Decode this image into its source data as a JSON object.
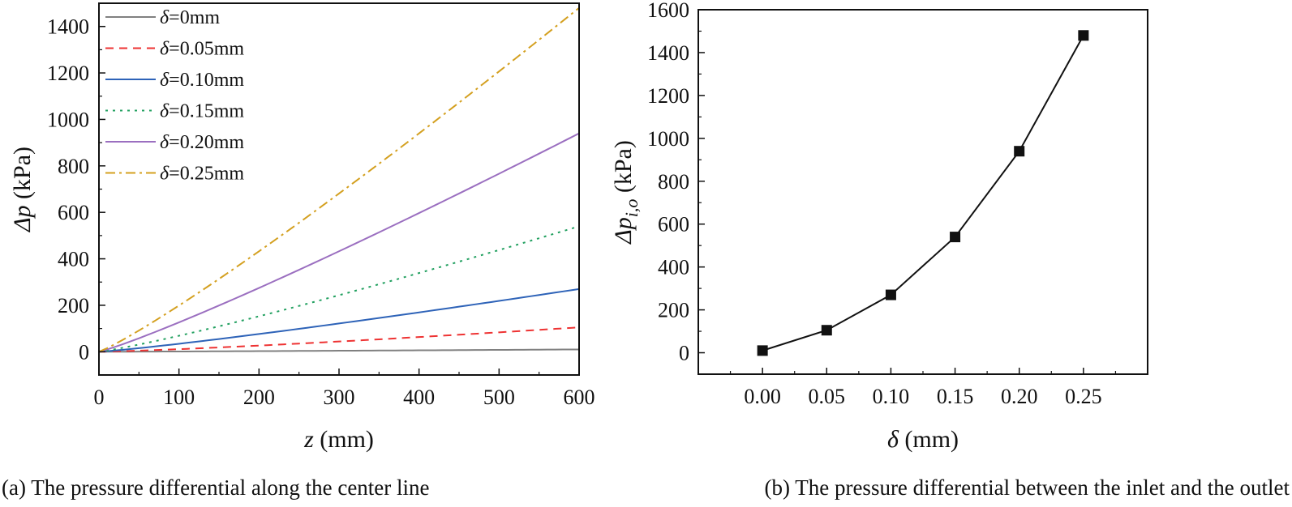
{
  "chart_data": [
    {
      "id": "a",
      "type": "line",
      "title": "",
      "caption": "(a) The pressure differential along the center line",
      "xlabel_symbol": "z",
      "xlabel_unit": "(mm)",
      "ylabel_symbol": "Δp",
      "ylabel_unit": "(kPa)",
      "xlim": [
        0,
        600
      ],
      "ylim": [
        -100,
        1500
      ],
      "xticks": [
        0,
        100,
        200,
        300,
        400,
        500,
        600
      ],
      "yticks": [
        0,
        200,
        400,
        600,
        800,
        1000,
        1200,
        1400
      ],
      "legend_position": "top-left",
      "series": [
        {
          "name": "δ=0mm",
          "legend_symbol": "δ",
          "legend_value": "=0mm",
          "color": "#808080",
          "dash": "solid",
          "end_value": 10,
          "exponent": 1.2
        },
        {
          "name": "δ=0.05mm",
          "legend_symbol": "δ",
          "legend_value": "=0.05mm",
          "color": "#ee3333",
          "dash": "dashed",
          "end_value": 105,
          "exponent": 1.25
        },
        {
          "name": "δ=0.10mm",
          "legend_symbol": "δ",
          "legend_value": "=0.10mm",
          "color": "#2e63b8",
          "dash": "solid",
          "end_value": 270,
          "exponent": 1.15
        },
        {
          "name": "δ=0.15mm",
          "legend_symbol": "δ",
          "legend_value": "=0.15mm",
          "color": "#22a060",
          "dash": "dotted",
          "end_value": 540,
          "exponent": 1.15
        },
        {
          "name": "δ=0.20mm",
          "legend_symbol": "δ",
          "legend_value": "=0.20mm",
          "color": "#9b6fc0",
          "dash": "solid",
          "end_value": 940,
          "exponent": 1.12
        },
        {
          "name": "δ=0.25mm",
          "legend_symbol": "δ",
          "legend_value": "=0.25mm",
          "color": "#d4a020",
          "dash": "dashdot",
          "end_value": 1480,
          "exponent": 1.12
        }
      ]
    },
    {
      "id": "b",
      "type": "line",
      "title": "",
      "caption": "(b) The pressure differential between the inlet and the outlet",
      "xlabel_symbol": "δ",
      "xlabel_unit": "(mm)",
      "ylabel_symbol": "Δp",
      "ylabel_subscript": "i,o",
      "ylabel_unit": "(kPa)",
      "xlim": [
        -0.05,
        0.3
      ],
      "ylim": [
        -100,
        1600
      ],
      "xtick_labels": [
        "0.00",
        "0.05",
        "0.10",
        "0.15",
        "0.20",
        "0.25"
      ],
      "yticks": [
        0,
        200,
        400,
        600,
        800,
        1000,
        1200,
        1400,
        1600
      ],
      "marker": "square",
      "color": "#111111",
      "x": [
        0.0,
        0.05,
        0.1,
        0.15,
        0.2,
        0.25
      ],
      "y": [
        10,
        105,
        270,
        540,
        940,
        1480
      ]
    }
  ]
}
